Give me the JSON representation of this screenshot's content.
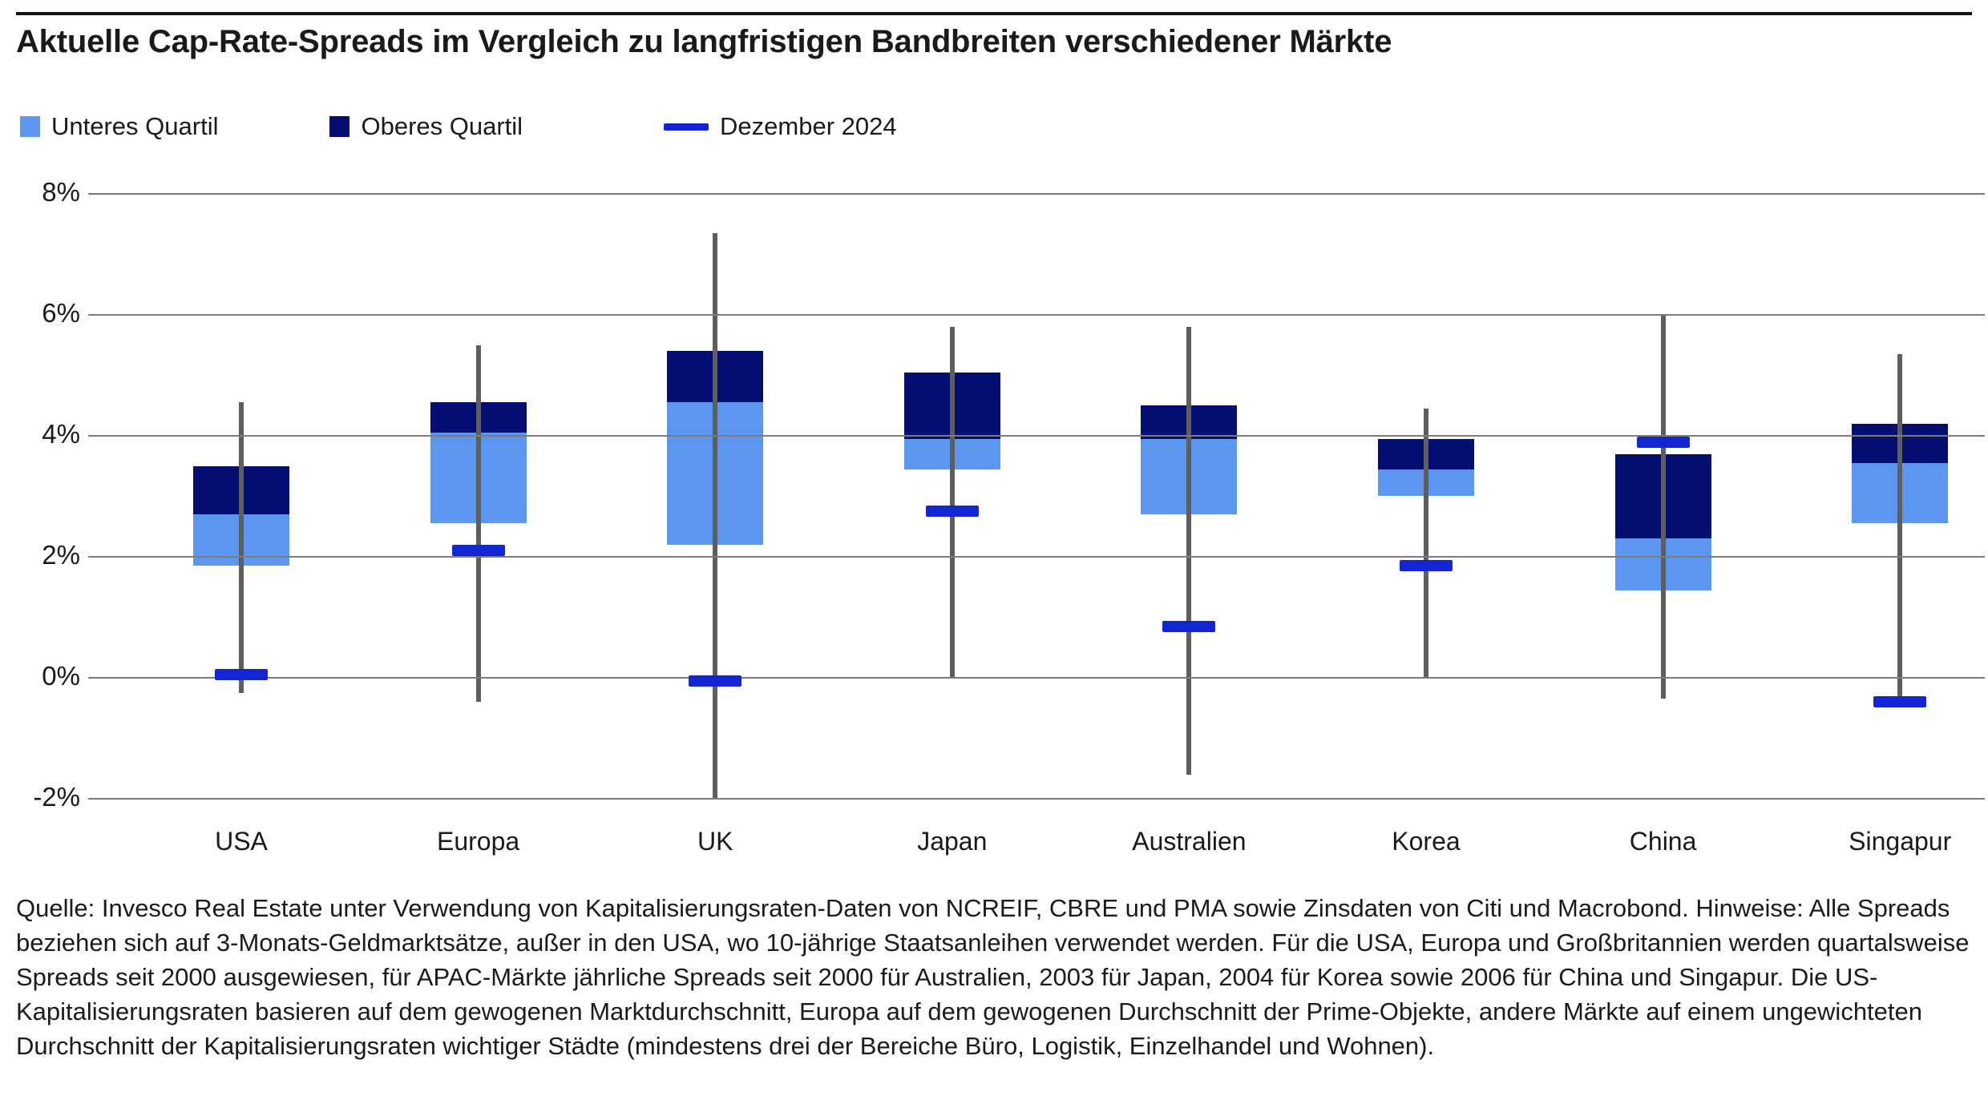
{
  "chart_data": {
    "type": "boxplot",
    "title": "Aktuelle Cap-Rate-Spreads im Vergleich zu langfristigen Bandbreiten verschiedener Märkte",
    "legend": [
      {
        "label": "Unteres Quartil",
        "swatch": "lower-quartile-square"
      },
      {
        "label": "Oberes Quartil",
        "swatch": "upper-quartile-square"
      },
      {
        "label": "Dezember 2024",
        "swatch": "december-dash"
      }
    ],
    "y_axis": {
      "tick_labels": [
        "8%",
        "6%",
        "4%",
        "2%",
        "0%",
        "-2%"
      ],
      "tick_values": [
        8,
        6,
        4,
        2,
        0,
        -2
      ],
      "unit": "%",
      "ylim": [
        -2,
        8
      ],
      "grid": true
    },
    "categories": [
      "USA",
      "Europa",
      "UK",
      "Japan",
      "Australien",
      "Korea",
      "China",
      "Singapur"
    ],
    "series": [
      {
        "name": "USA",
        "whisker_low": -0.25,
        "q_lower": 1.85,
        "median": 2.7,
        "q_upper": 3.5,
        "whisker_high": 4.55,
        "dec_2024": 0.05
      },
      {
        "name": "Europa",
        "whisker_low": -0.4,
        "q_lower": 2.55,
        "median": 4.05,
        "q_upper": 4.55,
        "whisker_high": 5.5,
        "dec_2024": 2.1
      },
      {
        "name": "UK",
        "whisker_low": -2.0,
        "q_lower": 2.2,
        "median": 4.55,
        "q_upper": 5.4,
        "whisker_high": 7.35,
        "dec_2024": -0.05
      },
      {
        "name": "Japan",
        "whisker_low": 0.0,
        "q_lower": 3.45,
        "median": 3.95,
        "q_upper": 5.05,
        "whisker_high": 5.8,
        "dec_2024": 2.75
      },
      {
        "name": "Australien",
        "whisker_low": -1.6,
        "q_lower": 2.7,
        "median": 3.95,
        "q_upper": 4.5,
        "whisker_high": 5.8,
        "dec_2024": 0.85
      },
      {
        "name": "Korea",
        "whisker_low": 0.0,
        "q_lower": 3.0,
        "median": 3.45,
        "q_upper": 3.95,
        "whisker_high": 4.45,
        "dec_2024": 1.85
      },
      {
        "name": "China",
        "whisker_low": -0.35,
        "q_lower": 1.45,
        "median": 2.3,
        "q_upper": 3.7,
        "whisker_high": 6.0,
        "dec_2024": 3.9
      },
      {
        "name": "Singapur",
        "whisker_low": -0.45,
        "q_lower": 2.55,
        "median": 3.55,
        "q_upper": 4.2,
        "whisker_high": 5.35,
        "dec_2024": -0.4
      }
    ],
    "colors": {
      "lower_quartile": "#5b97f0",
      "upper_quartile": "#050e73",
      "december_marker": "#1226d4",
      "whisker": "#5e5e5e",
      "gridline": "#7c7c7c",
      "text": "#1a1a1a"
    },
    "source_note": "Quelle: Invesco Real Estate unter Verwendung von Kapitalisierungsraten-Daten von NCREIF, CBRE und PMA sowie Zinsdaten von Citi und Macrobond. Hinweise: Alle Spreads beziehen sich auf 3-Monats-Geldmarktsätze, außer in den USA, wo 10-jährige Staatsanleihen verwendet werden. Für die USA, Europa und Großbritannien werden quartalsweise Spreads seit 2000 ausgewiesen, für APAC-Märkte jährliche Spreads seit 2000 für Australien, 2003 für Japan, 2004 für Korea sowie 2006 für China und Singapur. Die US-Kapitalisierungsraten basieren auf dem gewogenen Marktdurchschnitt, Europa auf dem gewogenen Durchschnitt der Prime-Objekte, andere Märkte auf einem ungewichteten Durchschnitt der Kapitalisierungsraten wichtiger Städte (mindestens drei der Bereiche Büro, Logistik, Einzelhandel und Wohnen)."
  }
}
